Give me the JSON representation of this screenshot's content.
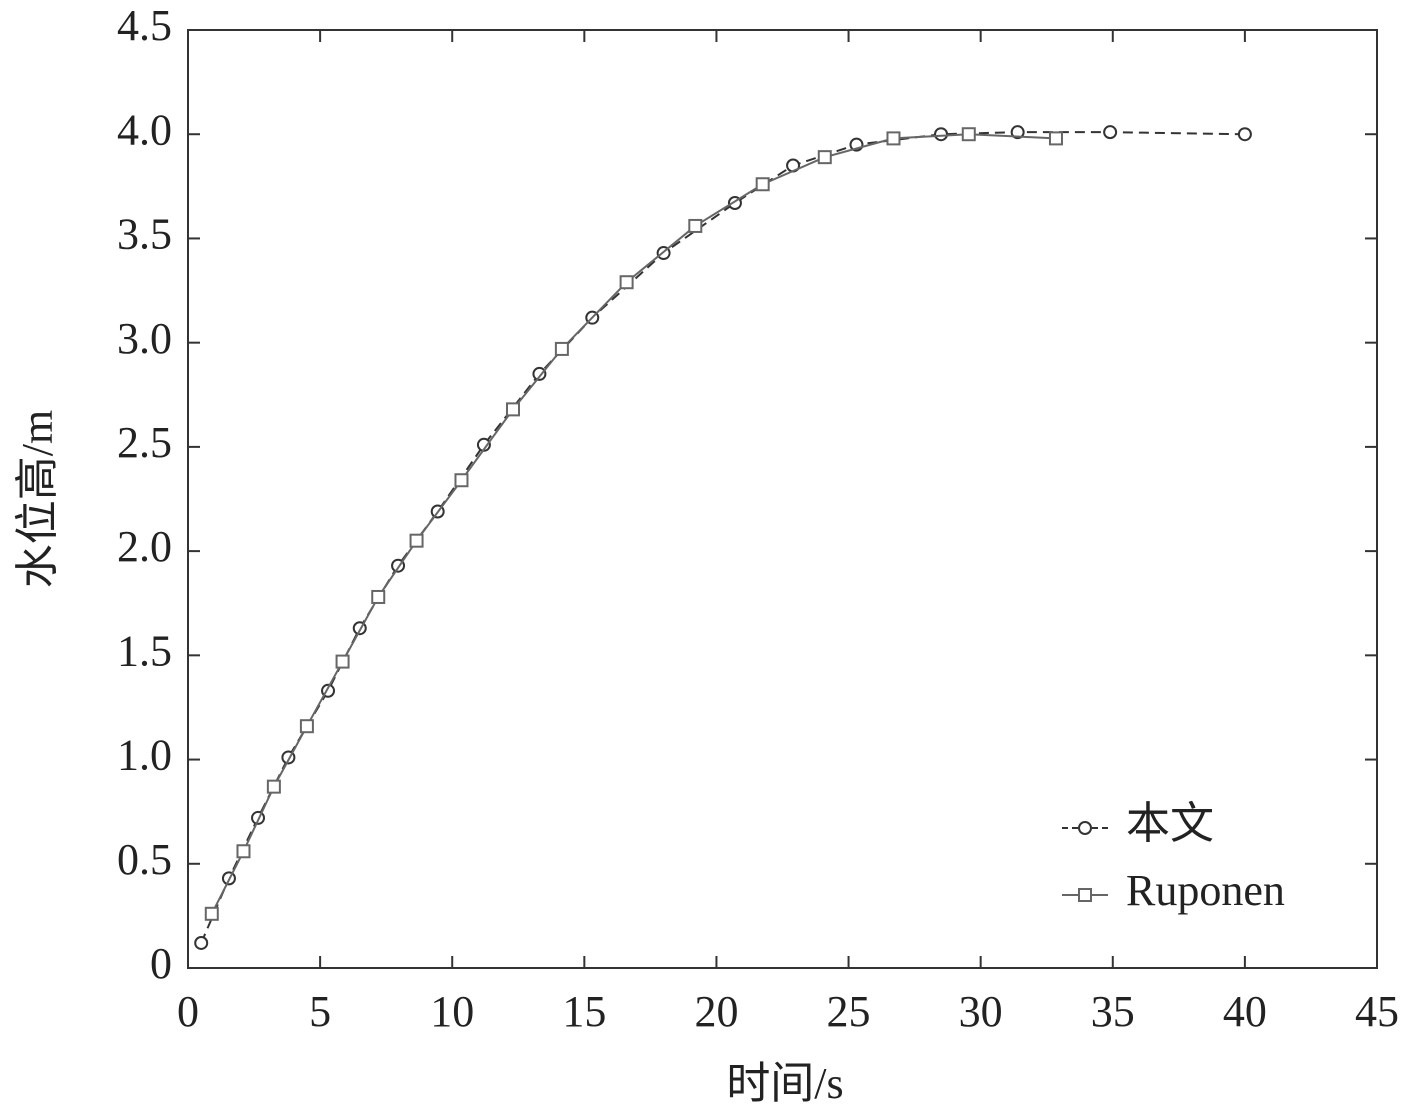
{
  "chart_data": {
    "type": "line",
    "x_label": "时间/s",
    "y_label": "水位高/m",
    "xlim": [
      0,
      45
    ],
    "xticks": [
      0,
      5,
      10,
      15,
      20,
      25,
      30,
      35,
      40,
      45
    ],
    "ylim": [
      0,
      4.5
    ],
    "yticks": [
      0,
      0.5,
      {
        "value": 1,
        "label": "1.0"
      },
      1.5,
      {
        "value": 2,
        "label": "2.0"
      },
      2.5,
      {
        "value": 3,
        "label": "3.0"
      },
      3.5,
      {
        "value": 4,
        "label": "4.0"
      },
      4.5
    ],
    "legend": "lower right",
    "series": [
      {
        "name": "本文",
        "color": "#333333",
        "marker": "circle",
        "dash": true,
        "x": [
          0.5,
          1.55,
          2.65,
          3.8,
          5.3,
          6.5,
          7.95,
          9.45,
          11.2,
          13.3,
          15.3,
          18.0,
          20.7,
          22.9,
          25.3,
          28.5,
          31.4,
          34.9,
          40
        ],
        "values": [
          0.12,
          0.43,
          0.72,
          1.01,
          1.33,
          1.63,
          1.93,
          2.19,
          2.51,
          2.85,
          3.12,
          3.43,
          3.67,
          3.85,
          3.95,
          4.0,
          4.01,
          4.01,
          4.0
        ]
      },
      {
        "name": "Ruponen",
        "color": "#666666",
        "marker": "square",
        "dash": false,
        "x": [
          0.9,
          2.1,
          3.25,
          4.5,
          5.85,
          7.2,
          8.65,
          10.35,
          12.3,
          14.15,
          16.6,
          19.2,
          21.75,
          24.1,
          26.7,
          29.55,
          32.85
        ],
        "values": [
          0.26,
          0.56,
          0.87,
          1.16,
          1.47,
          1.78,
          2.05,
          2.34,
          2.68,
          2.97,
          3.29,
          3.56,
          3.76,
          3.89,
          3.98,
          4.0,
          3.98
        ]
      }
    ]
  }
}
